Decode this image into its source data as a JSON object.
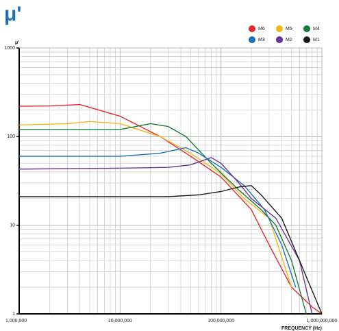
{
  "chart_data": {
    "type": "line",
    "title": "μ'",
    "y_label": "μ'",
    "x_label": "FREQUENCY (Hz)",
    "log_x": true,
    "log_y": true,
    "grid": true,
    "xlim": [
      1000000,
      1000000000
    ],
    "ylim": [
      1,
      1000
    ],
    "xticks": [
      {
        "value": 1000000,
        "label": "1,000,000"
      },
      {
        "value": 10000000,
        "label": "10,000,000"
      },
      {
        "value": 100000000,
        "label": "100,000,000"
      },
      {
        "value": 1000000000,
        "label": "1,000,000,000"
      }
    ],
    "yticks": [
      1,
      10,
      100,
      1000
    ],
    "series": [
      {
        "name": "M6",
        "color": "#e8262b",
        "x": [
          1000000,
          2000000,
          4000000,
          10000000,
          25000000,
          50000000,
          100000000,
          200000000,
          300000000,
          500000000,
          800000000,
          1000000000
        ],
        "values": [
          220,
          222,
          230,
          170,
          100,
          60,
          35,
          15,
          6,
          2,
          1.2,
          1
        ]
      },
      {
        "name": "M5",
        "color": "#f5b717",
        "x": [
          1000000,
          3000000,
          5000000,
          10000000,
          25000000,
          50000000,
          100000000,
          170000000,
          300000000,
          500000000
        ],
        "values": [
          135,
          140,
          148,
          140,
          100,
          65,
          38,
          20,
          12,
          2
        ]
      },
      {
        "name": "M4",
        "color": "#137a3c",
        "x": [
          1000000,
          10000000,
          20000000,
          30000000,
          45000000,
          80000000,
          150000000,
          250000000,
          350000000,
          500000000,
          700000000
        ],
        "values": [
          120,
          120,
          140,
          130,
          100,
          50,
          25,
          15,
          10,
          4,
          1
        ]
      },
      {
        "name": "M3",
        "color": "#1a72bb",
        "x": [
          1000000,
          10000000,
          25000000,
          45000000,
          60000000,
          100000000,
          170000000,
          270000000,
          400000000,
          550000000
        ],
        "values": [
          60,
          60,
          65,
          75,
          65,
          45,
          28,
          15,
          6,
          2
        ]
      },
      {
        "name": "M2",
        "color": "#6b3496",
        "x": [
          1000000,
          10000000,
          30000000,
          50000000,
          80000000,
          100000000,
          150000000,
          200000000,
          350000000,
          600000000,
          800000000
        ],
        "values": [
          43,
          44,
          45,
          48,
          58,
          50,
          30,
          20,
          12,
          4,
          1
        ]
      },
      {
        "name": "M1",
        "color": "#1a1a1a",
        "x": [
          1000000,
          30000000,
          60000000,
          100000000,
          150000000,
          200000000,
          250000000,
          400000000,
          600000000,
          1000000000
        ],
        "values": [
          21,
          21,
          22,
          24,
          27,
          28,
          22,
          12,
          4,
          1
        ]
      }
    ]
  }
}
